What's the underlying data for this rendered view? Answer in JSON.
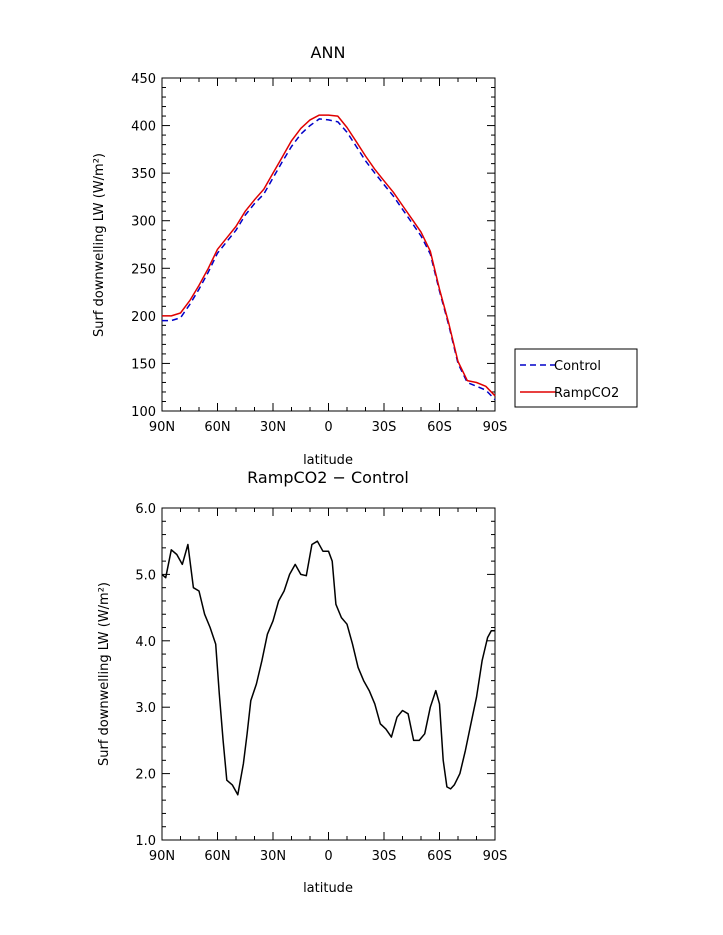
{
  "chart_data": [
    {
      "type": "line",
      "title": "ANN",
      "xlabel": "latitude",
      "ylabel": "Surf downwelling LW (W/m²)",
      "xticks": [
        "90N",
        "60N",
        "30N",
        "0",
        "30S",
        "60S",
        "90S"
      ],
      "xlim": [
        -90,
        90
      ],
      "ylim": [
        100,
        450
      ],
      "yticks": [
        "100",
        "150",
        "200",
        "250",
        "300",
        "350",
        "400",
        "450"
      ],
      "legend_position": "right-middle",
      "grid": false,
      "x": [
        -90,
        -85,
        -80,
        -75,
        -70,
        -65,
        -60,
        -55,
        -50,
        -45,
        -40,
        -35,
        -30,
        -25,
        -20,
        -15,
        -10,
        -5,
        0,
        5,
        10,
        15,
        20,
        25,
        30,
        35,
        40,
        45,
        50,
        55,
        60,
        65,
        70,
        75,
        80,
        85,
        90
      ],
      "series": [
        {
          "name": "Control",
          "color": "#0000c8",
          "dash": true,
          "values": [
            195,
            195,
            198,
            212,
            228,
            246,
            266,
            278,
            290,
            306,
            318,
            328,
            345,
            362,
            378,
            391,
            400,
            407,
            406,
            404,
            393,
            378,
            363,
            350,
            338,
            326,
            312,
            298,
            284,
            265,
            226,
            190,
            150,
            130,
            126,
            122,
            112
          ]
        },
        {
          "name": "RampCO2",
          "color": "#e00000",
          "dash": false,
          "values": [
            200,
            200,
            203,
            216,
            232,
            250,
            270,
            282,
            294,
            310,
            322,
            333,
            350,
            367,
            384,
            397,
            406,
            411,
            411,
            410,
            398,
            383,
            368,
            354,
            342,
            330,
            316,
            302,
            288,
            268,
            228,
            192,
            152,
            132,
            130,
            126,
            116
          ]
        }
      ]
    },
    {
      "type": "line",
      "title": "RampCO2 − Control",
      "xlabel": "latitude",
      "ylabel": "Surf downwelling LW (W/m²)",
      "xticks": [
        "90N",
        "60N",
        "30N",
        "0",
        "30S",
        "60S",
        "90S"
      ],
      "xlim": [
        -90,
        90
      ],
      "ylim": [
        1.0,
        6.0
      ],
      "yticks": [
        "1.0",
        "2.0",
        "3.0",
        "4.0",
        "5.0",
        "6.0"
      ],
      "grid": false,
      "x": [
        -90,
        -88,
        -85,
        -82,
        -79,
        -76,
        -73,
        -70,
        -67,
        -64,
        -61,
        -59,
        -57,
        -55,
        -52,
        -49,
        -46,
        -44,
        -42,
        -39,
        -36,
        -33,
        -30,
        -27,
        -24,
        -21,
        -18,
        -15,
        -12,
        -9,
        -6,
        -3,
        0,
        2,
        4,
        7,
        10,
        13,
        16,
        19,
        22,
        25,
        28,
        31,
        34,
        37,
        40,
        43,
        46,
        49,
        52,
        55,
        58,
        60,
        62,
        64,
        66,
        68,
        71,
        74,
        77,
        80,
        83,
        86,
        88,
        90
      ],
      "series": [
        {
          "name": "",
          "color": "#000000",
          "dash": false,
          "values": [
            5.0,
            4.95,
            5.37,
            5.3,
            5.15,
            5.45,
            4.8,
            4.75,
            4.4,
            4.2,
            3.95,
            3.2,
            2.5,
            1.9,
            1.83,
            1.68,
            2.15,
            2.6,
            3.1,
            3.35,
            3.7,
            4.1,
            4.3,
            4.6,
            4.75,
            5.0,
            5.15,
            5.0,
            4.98,
            5.45,
            5.5,
            5.35,
            5.35,
            5.2,
            4.55,
            4.35,
            4.25,
            3.95,
            3.6,
            3.4,
            3.25,
            3.05,
            2.75,
            2.67,
            2.55,
            2.85,
            2.95,
            2.9,
            2.5,
            2.5,
            2.6,
            3.0,
            3.25,
            3.05,
            2.2,
            1.8,
            1.77,
            1.83,
            2.0,
            2.35,
            2.75,
            3.15,
            3.7,
            4.05,
            4.15,
            4.15
          ]
        }
      ],
      "annotations": {}
    }
  ],
  "legend": {
    "items": [
      {
        "label": "Control"
      },
      {
        "label": "RampCO2"
      }
    ]
  }
}
